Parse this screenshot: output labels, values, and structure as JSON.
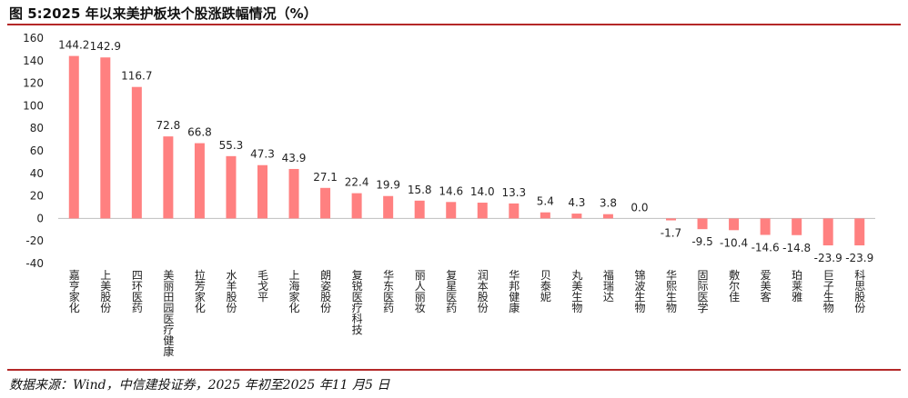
{
  "title": "图 5:2025 年以来美护板块个股涨跌幅情况（%）",
  "source": "数据来源：Wind，中信建投证券，2025 年初至2025 年11 月5 日",
  "colors": {
    "bar": "#ff8080",
    "axis": "#bfbfbf",
    "rule": "#b42828"
  },
  "chart_data": {
    "type": "bar",
    "title": "图 5:2025 年以来美护板块个股涨跌幅情况（%）",
    "xlabel": "",
    "ylabel": "",
    "ylim": [
      -40,
      160
    ],
    "yticks": [
      -40,
      -20,
      0,
      20,
      40,
      60,
      80,
      100,
      120,
      140,
      160
    ],
    "grid": false,
    "legend": "none",
    "categories": [
      "嘉亨家化",
      "上美股份",
      "四环医药",
      "美丽田园医疗健康",
      "拉芳家化",
      "水羊股份",
      "毛戈平",
      "上海家化",
      "朗姿股份",
      "复锐医疗科技",
      "华东医药",
      "丽人丽妆",
      "复星医药",
      "润本股份",
      "华邦健康",
      "贝泰妮",
      "丸美生物",
      "福瑞达",
      "锦波生物",
      "华熙生物",
      "固际医学",
      "敷尔佳",
      "爱美客",
      "珀莱雅",
      "巨子生物",
      "科思股份"
    ],
    "labels": [
      "144.2",
      "142.9",
      "116.7",
      "72.8",
      "66.8",
      "55.3",
      "47.3",
      "43.9",
      "27.1",
      "22.4",
      "19.9",
      "15.8",
      "14.6",
      "14.0",
      "13.3",
      "5.4",
      "4.3",
      "3.8",
      "0.0",
      "-1.7",
      "-9.5",
      "-10.4",
      "-14.6",
      "-14.8",
      "-23.9",
      "-23.9"
    ],
    "values": [
      144.2,
      142.9,
      116.7,
      72.8,
      66.8,
      55.3,
      47.3,
      43.9,
      27.1,
      22.4,
      19.9,
      15.8,
      14.6,
      14.0,
      13.3,
      5.4,
      4.3,
      3.8,
      0.0,
      -1.7,
      -9.5,
      -10.4,
      -14.6,
      -14.8,
      -23.9,
      -23.9
    ]
  }
}
